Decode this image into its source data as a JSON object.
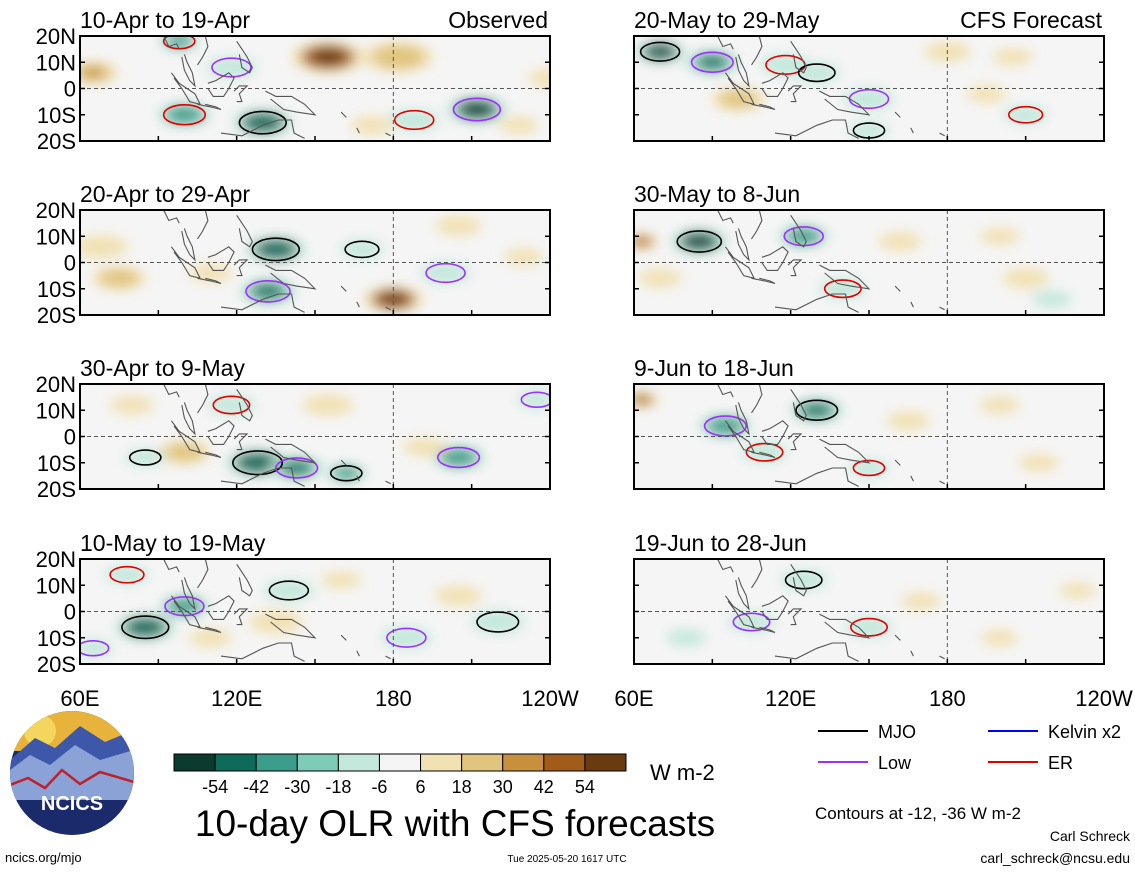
{
  "title": "10-day OLR with CFS forecasts",
  "observed_label": "Observed",
  "forecast_label": "CFS Forecast",
  "units": "W m-2",
  "contour_note": "Contours at -12, -36 W m-2",
  "author": "Carl Schreck",
  "email": "carl_schreck@ncsu.edu",
  "site": "ncics.org/mjo",
  "timestamp": "Tue 2025-05-20 1617 UTC",
  "logo_text": "NCICS",
  "colors": {
    "shade_neg": [
      "#0b3a2e",
      "#0e6b5c",
      "#3b9e8c",
      "#7ecbb8",
      "#c4e8dc"
    ],
    "shade_zero": "#f5f5f5",
    "shade_pos": [
      "#f1e1b3",
      "#e1c47d",
      "#c78f3e",
      "#a15c1a",
      "#6a3a10"
    ],
    "mjo": "#000000",
    "kelvin": "#0000ff",
    "low": "#9b30ff",
    "er": "#e00000",
    "coast": "#555555"
  },
  "chart_data": {
    "type": "heatmap",
    "variable": "OLR anomaly",
    "x_ticks": [
      "60E",
      "120E",
      "180",
      "120W"
    ],
    "y_ticks": [
      "20N",
      "10N",
      "0",
      "10S",
      "20S"
    ],
    "colorbar": {
      "levels": [
        -54,
        -42,
        -30,
        -18,
        -6,
        6,
        18,
        30,
        42,
        54
      ],
      "labels": [
        "-54",
        "-42",
        "-30",
        "-18",
        "-6",
        "6",
        "18",
        "30",
        "42",
        "54"
      ]
    },
    "contour_levels": [
      -12,
      -36
    ],
    "legend": [
      {
        "name": "MJO",
        "color_key": "mjo"
      },
      {
        "name": "Kelvin x2",
        "color_key": "kelvin"
      },
      {
        "name": "Low",
        "color_key": "low"
      },
      {
        "name": "ER",
        "color_key": "er"
      }
    ],
    "panels": [
      {
        "title": "10-Apr to 19-Apr",
        "period": "Observed",
        "blobs": [
          [
            155,
            12,
            2.2,
            48
          ],
          [
            182,
            12,
            2.1,
            22
          ],
          [
            100,
            -10,
            1.6,
            -24
          ],
          [
            130,
            -13,
            1.8,
            -36
          ],
          [
            212,
            -8,
            1.8,
            -42
          ],
          [
            188,
            -12,
            1.5,
            -18
          ],
          [
            65,
            6,
            1.5,
            30
          ],
          [
            118,
            8,
            1.5,
            -18
          ],
          [
            98,
            18,
            1.2,
            -20
          ],
          [
            240,
            4,
            1.3,
            12
          ],
          [
            228,
            -14,
            1.2,
            14
          ],
          [
            172,
            -14,
            1.3,
            14
          ]
        ]
      },
      {
        "title": "20-Apr to 29-Apr",
        "period": "Observed",
        "blobs": [
          [
            135,
            5,
            1.8,
            -36
          ],
          [
            132,
            -11,
            1.7,
            -30
          ],
          [
            180,
            -14,
            1.8,
            44
          ],
          [
            75,
            -6,
            1.6,
            24
          ],
          [
            68,
            6,
            1.6,
            18
          ],
          [
            205,
            14,
            1.4,
            12
          ],
          [
            168,
            5,
            1.3,
            -14
          ],
          [
            200,
            -4,
            1.5,
            -12
          ],
          [
            110,
            -4,
            1.3,
            16
          ],
          [
            230,
            2,
            1.2,
            12
          ]
        ]
      },
      {
        "title": "30-Apr to 9-May",
        "period": "Observed",
        "blobs": [
          [
            128,
            -10,
            1.9,
            -36
          ],
          [
            143,
            -12,
            1.6,
            -30
          ],
          [
            100,
            -6,
            1.6,
            24
          ],
          [
            85,
            -8,
            1.2,
            -14
          ],
          [
            205,
            -8,
            1.6,
            -24
          ],
          [
            155,
            12,
            1.5,
            16
          ],
          [
            162,
            -14,
            1.2,
            -20
          ],
          [
            235,
            14,
            1.2,
            -14
          ],
          [
            118,
            12,
            1.4,
            -12
          ],
          [
            192,
            -4,
            1.3,
            12
          ],
          [
            80,
            12,
            1.3,
            16
          ]
        ]
      },
      {
        "title": "10-May to 19-May",
        "period": "Observed",
        "blobs": [
          [
            85,
            -6,
            1.8,
            -36
          ],
          [
            100,
            2,
            1.5,
            -24
          ],
          [
            78,
            14,
            1.3,
            -18
          ],
          [
            140,
            8,
            1.5,
            -18
          ],
          [
            185,
            -10,
            1.5,
            -18
          ],
          [
            110,
            -10,
            1.3,
            16
          ],
          [
            220,
            -4,
            1.6,
            -18
          ],
          [
            205,
            6,
            1.4,
            16
          ],
          [
            135,
            -4,
            1.6,
            12
          ],
          [
            160,
            12,
            1.2,
            14
          ],
          [
            65,
            -14,
            1.2,
            -12
          ]
        ]
      },
      {
        "title": "20-May to 29-May",
        "period": "CFS Forecast",
        "blobs": [
          [
            70,
            14,
            1.5,
            -48
          ],
          [
            90,
            10,
            1.6,
            -30
          ],
          [
            118,
            9,
            1.5,
            -18
          ],
          [
            130,
            6,
            1.4,
            -18
          ],
          [
            150,
            -4,
            1.5,
            -12
          ],
          [
            100,
            -4,
            1.6,
            22
          ],
          [
            180,
            14,
            1.4,
            14
          ],
          [
            205,
            12,
            1.2,
            14
          ],
          [
            210,
            -10,
            1.3,
            -18
          ],
          [
            150,
            -16,
            1.2,
            -12
          ],
          [
            195,
            -2,
            1.2,
            10
          ]
        ]
      },
      {
        "title": "30-May to 8-Jun",
        "period": "CFS Forecast",
        "blobs": [
          [
            85,
            8,
            1.7,
            -42
          ],
          [
            125,
            10,
            1.5,
            -24
          ],
          [
            140,
            -10,
            1.4,
            -18
          ],
          [
            63,
            8,
            1.0,
            36
          ],
          [
            70,
            -6,
            1.3,
            18
          ],
          [
            162,
            8,
            1.3,
            12
          ],
          [
            210,
            -6,
            1.4,
            12
          ],
          [
            200,
            10,
            1.2,
            10
          ],
          [
            220,
            -14,
            1.2,
            -10
          ]
        ]
      },
      {
        "title": "9-Jun to 18-Jun",
        "period": "CFS Forecast",
        "blobs": [
          [
            130,
            10,
            1.6,
            -30
          ],
          [
            95,
            4,
            1.6,
            -24
          ],
          [
            110,
            -6,
            1.4,
            -12
          ],
          [
            63,
            14,
            1.0,
            36
          ],
          [
            165,
            6,
            1.3,
            12
          ],
          [
            150,
            -12,
            1.2,
            -12
          ],
          [
            215,
            -10,
            1.2,
            10
          ],
          [
            200,
            12,
            1.2,
            10
          ]
        ]
      },
      {
        "title": "19-Jun to 28-Jun",
        "period": "CFS Forecast",
        "blobs": [
          [
            125,
            12,
            1.4,
            -18
          ],
          [
            105,
            -4,
            1.4,
            -12
          ],
          [
            150,
            -6,
            1.4,
            -12
          ],
          [
            170,
            4,
            1.2,
            10
          ],
          [
            230,
            8,
            1.1,
            8
          ],
          [
            80,
            -10,
            1.2,
            -8
          ],
          [
            200,
            -10,
            1.1,
            8
          ]
        ]
      }
    ]
  }
}
